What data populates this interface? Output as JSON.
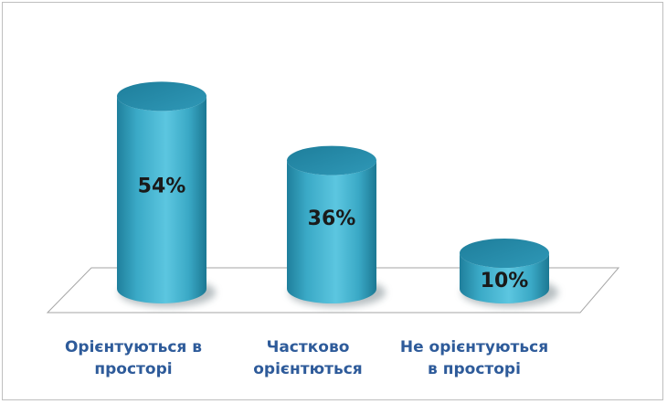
{
  "chart_data": {
    "type": "bar",
    "style": "3d-cylinder",
    "categories": [
      "Орієнтуються в\nпросторі",
      "Частково\nорієнтються",
      "Не орієнтуються\nв просторі"
    ],
    "values": [
      54,
      36,
      10
    ],
    "value_labels": [
      "54%",
      "36%",
      "10%"
    ],
    "unit": "%",
    "ylim": [
      0,
      60
    ],
    "grid": false,
    "legend": "none",
    "bar_color": "#3aa9c6",
    "bar_top_color": "#2a8fae",
    "floor_color": "#ffffff",
    "floor_stroke": "#a6a6a6",
    "category_label_color": "#2e5b9a"
  }
}
